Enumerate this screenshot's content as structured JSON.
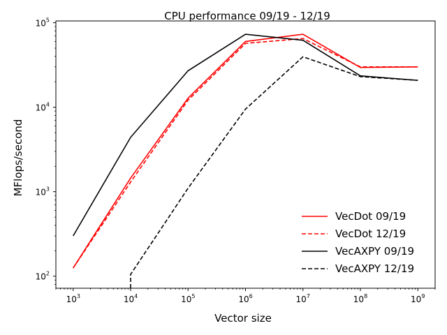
{
  "chart_data": {
    "type": "line",
    "title": "CPU performance 09/19 - 12/19",
    "xlabel": "Vector size",
    "ylabel": "MFlops/second",
    "xscale": "log",
    "yscale": "log",
    "xlim": [
      500,
      2000000000
    ],
    "ylim": [
      72,
      105000
    ],
    "grid": false,
    "legend_position": "bottom-right",
    "x_ticks": [
      {
        "base": "10",
        "exp": "3"
      },
      {
        "base": "10",
        "exp": "4"
      },
      {
        "base": "10",
        "exp": "5"
      },
      {
        "base": "10",
        "exp": "6"
      },
      {
        "base": "10",
        "exp": "7"
      },
      {
        "base": "10",
        "exp": "8"
      },
      {
        "base": "10",
        "exp": "9"
      }
    ],
    "y_ticks": [
      {
        "base": "10",
        "exp": "2"
      },
      {
        "base": "10",
        "exp": "3"
      },
      {
        "base": "10",
        "exp": "4"
      },
      {
        "base": "10",
        "exp": "5"
      }
    ],
    "series": [
      {
        "name": "VecDot 09/19",
        "color": "#ff0000",
        "dash": "solid",
        "x": [
          1000,
          10000,
          100000,
          1000000,
          10000000,
          100000000,
          1000000000
        ],
        "y": [
          125,
          1450,
          12800,
          60000,
          73000,
          29500,
          30000
        ]
      },
      {
        "name": "VecDot 12/19",
        "color": "#ff0000",
        "dash": "dashed",
        "x": [
          1000,
          10000,
          100000,
          1000000,
          10000000,
          100000000,
          1000000000
        ],
        "y": [
          125,
          1300,
          12100,
          57000,
          65000,
          30000,
          30000
        ]
      },
      {
        "name": "VecAXPY 09/19",
        "color": "#000000",
        "dash": "solid",
        "x": [
          1000,
          10000,
          100000,
          1000000,
          10000000,
          100000000,
          1000000000
        ],
        "y": [
          300,
          4400,
          27000,
          73000,
          62000,
          23500,
          20800
        ]
      },
      {
        "name": "VecAXPY 12/19",
        "color": "#000000",
        "dash": "dashed",
        "x": [
          10000,
          10000,
          100000,
          1000000,
          10000000,
          100000000,
          1000000000
        ],
        "y": [
          72,
          105,
          1100,
          9500,
          39500,
          23000,
          20800
        ]
      }
    ]
  }
}
